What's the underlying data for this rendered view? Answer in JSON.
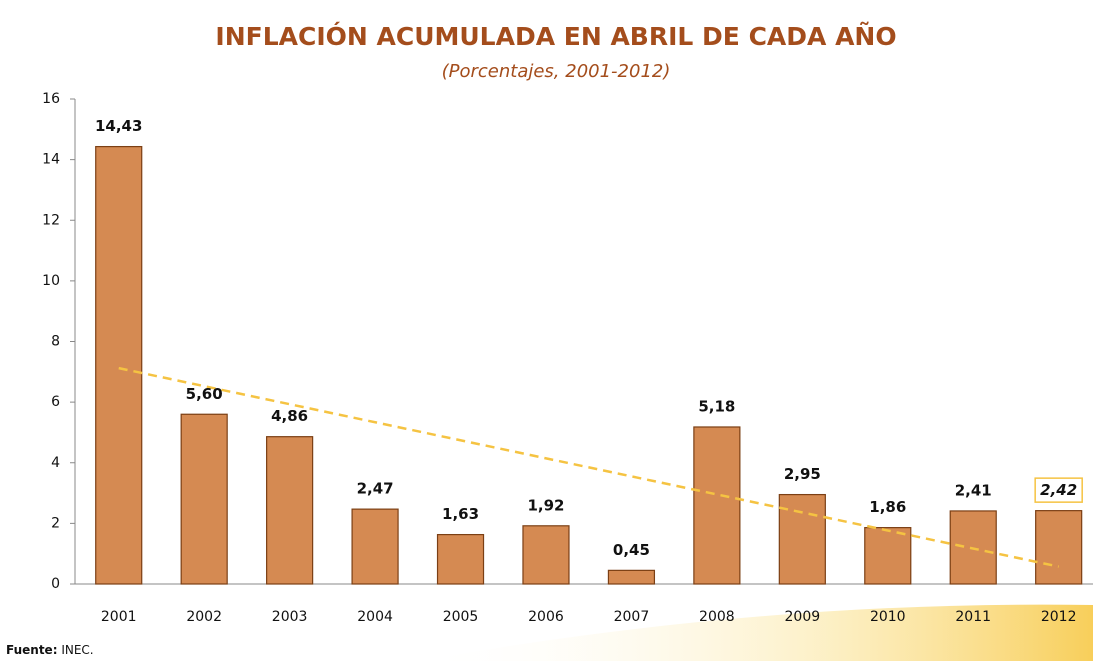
{
  "chart_data": {
    "type": "bar",
    "title": "INFLACIÓN ACUMULADA  EN ABRIL DE CADA AÑO",
    "subtitle": "(Porcentajes, 2001-2012)",
    "categories": [
      "2001",
      "2002",
      "2003",
      "2004",
      "2005",
      "2006",
      "2007",
      "2008",
      "2009",
      "2010",
      "2011",
      "2012"
    ],
    "values": [
      14.43,
      5.6,
      4.86,
      2.47,
      1.63,
      1.92,
      0.45,
      5.18,
      2.95,
      1.86,
      2.41,
      2.42
    ],
    "value_labels": [
      "14,43",
      "5,60",
      "4,86",
      "2,47",
      "1,63",
      "1,92",
      "0,45",
      "5,18",
      "2,95",
      "1,86",
      "2,41",
      "2,42"
    ],
    "color": "#d58a52",
    "edge_color": "#7b3f14",
    "ylim": [
      0,
      16
    ],
    "yticks": [
      0,
      2,
      4,
      6,
      8,
      10,
      12,
      14,
      16
    ],
    "trendline": true,
    "trendline_color": "#f5c342",
    "highlight_category": "2012",
    "source_label": "Fuente:",
    "source": "INEC."
  }
}
